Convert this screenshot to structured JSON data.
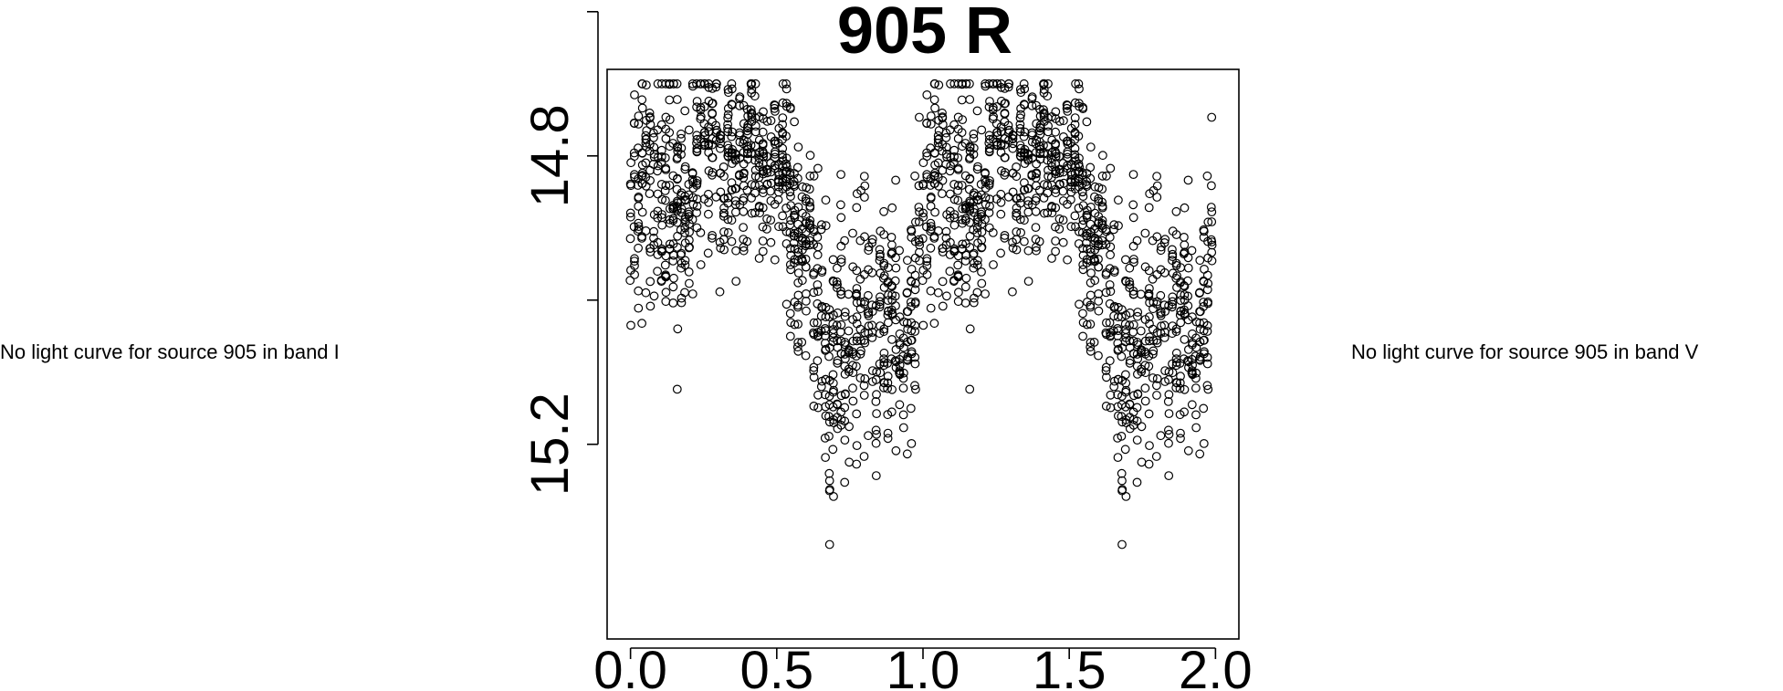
{
  "left_note": "No light curve for source 905 in band I",
  "right_note": "No light curve for source 905 in band V",
  "chart_data": {
    "type": "scatter",
    "title": "905 R",
    "xlabel": "",
    "ylabel": "",
    "xlim": [
      -0.08,
      2.08
    ],
    "ylim": [
      15.47,
      14.68
    ],
    "y_inverted": true,
    "grid": false,
    "legend": "none",
    "x_ticks": [
      0.0,
      0.5,
      1.0,
      1.5,
      2.0
    ],
    "x_tick_labels": [
      "0.0",
      "0.5",
      "1.0",
      "1.5",
      "2.0"
    ],
    "y_ticks": [
      14.6,
      14.8,
      15.0,
      15.2
    ],
    "y_tick_labels": [
      "",
      "14.8",
      "",
      "15.2"
    ],
    "marker": "open-circle",
    "series": [
      {
        "phase_profile": [
          {
            "x": 0.0,
            "y": 14.86,
            "spread": 0.12
          },
          {
            "x": 0.05,
            "y": 14.83,
            "spread": 0.08
          },
          {
            "x": 0.1,
            "y": 14.86,
            "spread": 0.09
          },
          {
            "x": 0.15,
            "y": 14.88,
            "spread": 0.1
          },
          {
            "x": 0.2,
            "y": 14.86,
            "spread": 0.08
          },
          {
            "x": 0.25,
            "y": 14.81,
            "spread": 0.08
          },
          {
            "x": 0.3,
            "y": 14.8,
            "spread": 0.07
          },
          {
            "x": 0.35,
            "y": 14.79,
            "spread": 0.07
          },
          {
            "x": 0.4,
            "y": 14.78,
            "spread": 0.07
          },
          {
            "x": 0.45,
            "y": 14.8,
            "spread": 0.07
          },
          {
            "x": 0.5,
            "y": 14.81,
            "spread": 0.07
          },
          {
            "x": 0.55,
            "y": 14.87,
            "spread": 0.08
          },
          {
            "x": 0.6,
            "y": 14.92,
            "spread": 0.09
          },
          {
            "x": 0.65,
            "y": 15.03,
            "spread": 0.11
          },
          {
            "x": 0.7,
            "y": 15.07,
            "spread": 0.1
          },
          {
            "x": 0.75,
            "y": 15.05,
            "spread": 0.1
          },
          {
            "x": 0.8,
            "y": 15.04,
            "spread": 0.09
          },
          {
            "x": 0.85,
            "y": 15.06,
            "spread": 0.1
          },
          {
            "x": 0.9,
            "y": 15.04,
            "spread": 0.08
          },
          {
            "x": 0.95,
            "y": 15.08,
            "spread": 0.08
          },
          {
            "x": 1.0,
            "y": 14.86,
            "spread": 0.12
          }
        ]
      }
    ]
  }
}
